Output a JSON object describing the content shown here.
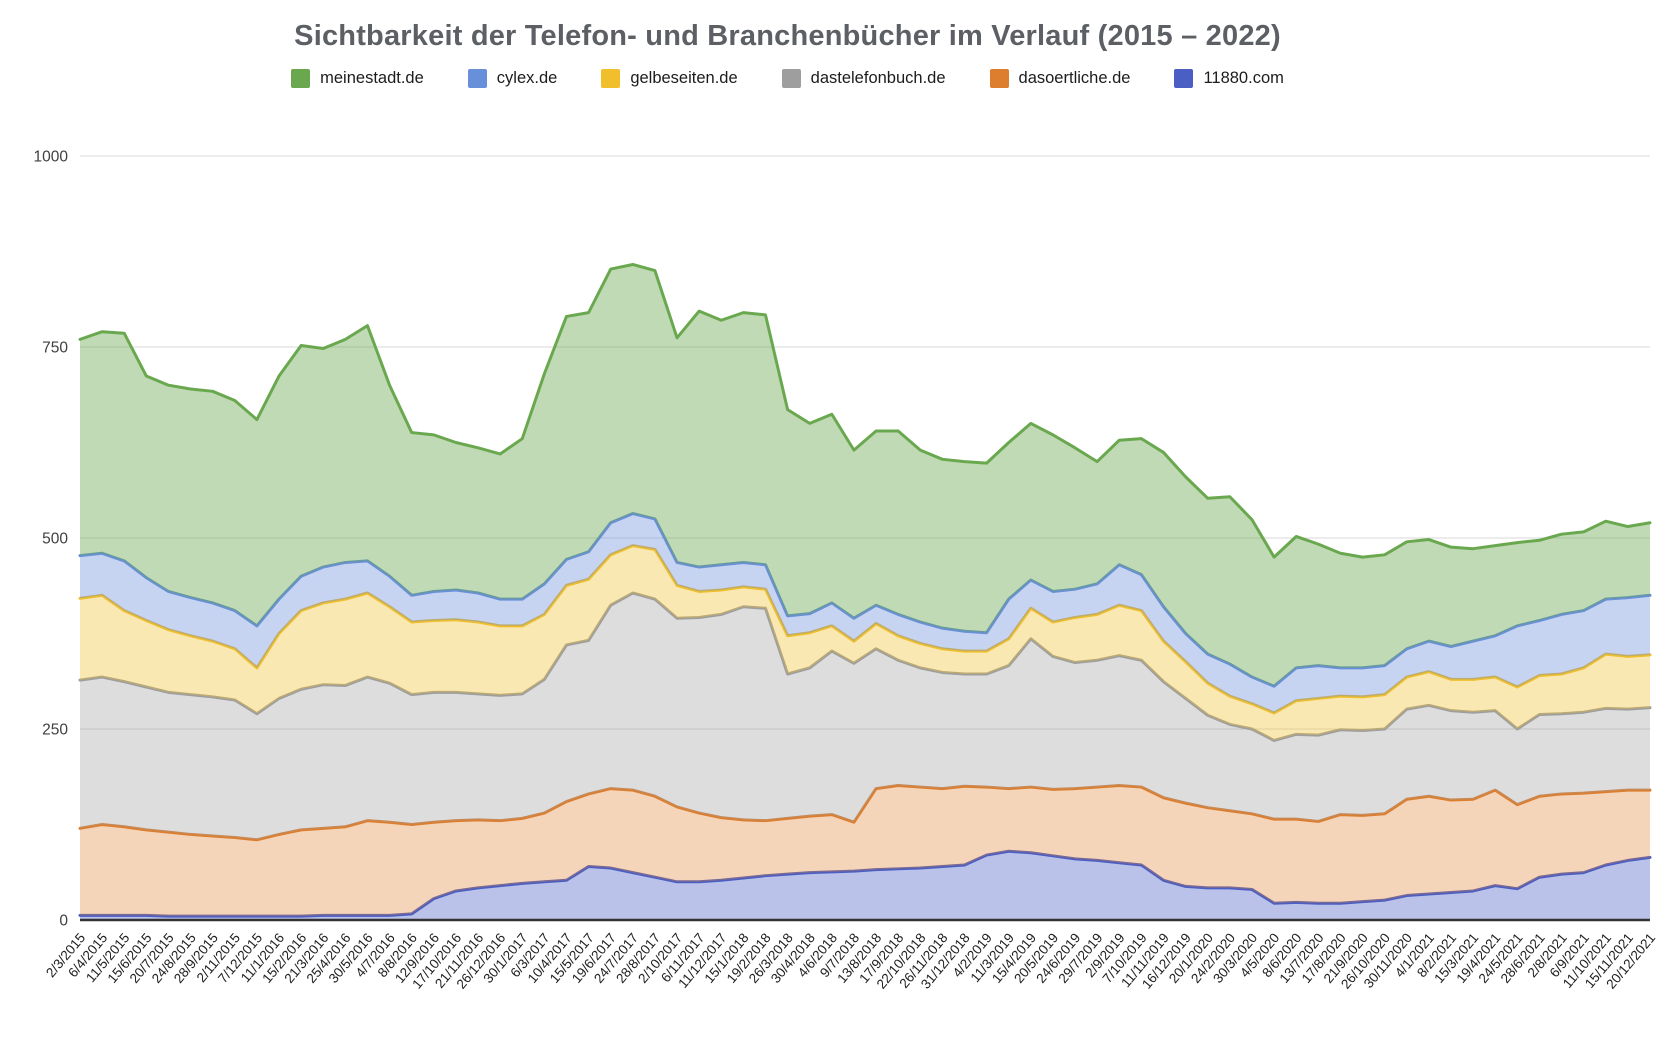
{
  "page": {
    "background": "#ffffff"
  },
  "chart_data": {
    "type": "area",
    "stacked": true,
    "title": "Sichtbarkeit der Telefon- und Branchenbücher im Verlauf (2015 – 2022)",
    "legend_position": "top",
    "grid": true,
    "ylim": [
      0,
      1000
    ],
    "y_ticks": [
      0,
      250,
      500,
      750,
      1000
    ],
    "categories": [
      "2/3/2015",
      "6/4/2015",
      "11/5/2015",
      "15/6/2015",
      "20/7/2015",
      "24/8/2015",
      "28/9/2015",
      "2/11/2015",
      "7/12/2015",
      "11/1/2016",
      "15/2/2016",
      "21/3/2016",
      "25/4/2016",
      "30/5/2016",
      "4/7/2016",
      "8/8/2016",
      "12/9/2016",
      "17/10/2016",
      "21/11/2016",
      "26/12/2016",
      "30/1/2017",
      "6/3/2017",
      "10/4/2017",
      "15/5/2017",
      "19/6/2017",
      "24/7/2017",
      "28/8/2017",
      "2/10/2017",
      "6/11/2017",
      "11/12/2017",
      "15/1/2018",
      "19/2/2018",
      "26/3/2018",
      "30/4/2018",
      "4/6/2018",
      "9/7/2018",
      "13/8/2018",
      "17/9/2018",
      "22/10/2018",
      "26/11/2018",
      "31/12/2018",
      "4/2/2019",
      "11/3/2019",
      "15/4/2019",
      "20/5/2019",
      "24/6/2019",
      "29/7/2019",
      "2/9/2019",
      "7/10/2019",
      "11/11/2019",
      "16/12/2019",
      "20/1/2020",
      "24/2/2020",
      "30/3/2020",
      "4/5/2020",
      "8/6/2020",
      "13/7/2020",
      "17/8/2020",
      "21/9/2020",
      "26/10/2020",
      "30/11/2020",
      "4/1/2021",
      "8/2/2021",
      "15/3/2021",
      "19/4/2021",
      "24/5/2021",
      "28/6/2021",
      "2/8/2021",
      "6/9/2021",
      "11/10/2021",
      "15/11/2021",
      "20/12/2021"
    ],
    "series": [
      {
        "name": "meinestadt.de",
        "color": "#6aa84f",
        "fill_opacity": 0.42,
        "values": [
          283,
          290,
          298,
          264,
          270,
          273,
          277,
          275,
          270,
          292,
          302,
          286,
          292,
          308,
          250,
          213,
          205,
          193,
          190,
          190,
          210,
          275,
          318,
          313,
          332,
          326,
          325,
          294,
          335,
          320,
          327,
          327,
          270,
          249,
          247,
          220,
          228,
          240,
          225,
          221,
          222,
          222,
          205,
          205,
          205,
          185,
          160,
          163,
          178,
          202,
          205,
          204,
          219,
          206,
          169,
          172,
          159,
          150,
          145,
          145,
          140,
          133,
          130,
          121,
          118,
          109,
          105,
          105,
          103,
          102,
          93,
          95
        ]
      },
      {
        "name": "cylex.de",
        "color": "#688fd9",
        "fill_opacity": 0.38,
        "values": [
          56,
          55,
          65,
          56,
          50,
          50,
          50,
          50,
          55,
          45,
          45,
          47,
          48,
          42,
          40,
          35,
          38,
          39,
          38,
          35,
          35,
          40,
          34,
          36,
          42,
          42,
          40,
          30,
          32,
          33,
          32,
          32,
          26,
          25,
          30,
          30,
          24,
          28,
          28,
          27,
          26,
          24,
          52,
          37,
          40,
          37,
          40,
          53,
          47,
          45,
          37,
          38,
          42,
          35,
          35,
          43,
          43,
          37,
          38,
          38,
          37,
          40,
          43,
          50,
          54,
          80,
          72,
          78,
          75,
          72,
          77,
          78
        ]
      },
      {
        "name": "gelbeseiten.de",
        "color": "#f0bf2b",
        "fill_opacity": 0.36,
        "values": [
          107,
          107,
          93,
          87,
          82,
          77,
          73,
          67,
          60,
          85,
          103,
          107,
          113,
          110,
          100,
          95,
          94,
          95,
          94,
          91,
          89,
          85,
          78,
          80,
          66,
          62,
          65,
          43,
          34,
          32,
          26,
          25,
          50,
          46,
          33,
          29,
          33,
          32,
          32,
          31,
          30,
          30,
          35,
          40,
          45,
          59,
          60,
          66,
          65,
          53,
          48,
          42,
          37,
          33,
          36,
          44,
          48,
          44,
          44,
          45,
          42,
          44,
          41,
          43,
          44,
          55,
          51,
          52,
          58,
          71,
          69,
          69
        ]
      },
      {
        "name": "dastelefonbuch.de",
        "color": "#9e9e9e",
        "fill_opacity": 0.35,
        "values": [
          194,
          193,
          190,
          187,
          183,
          183,
          182,
          180,
          165,
          178,
          184,
          188,
          185,
          188,
          182,
          170,
          170,
          168,
          165,
          164,
          163,
          175,
          205,
          201,
          240,
          258,
          258,
          247,
          256,
          266,
          279,
          278,
          189,
          194,
          214,
          208,
          183,
          164,
          156,
          152,
          147,
          148,
          161,
          194,
          174,
          165,
          166,
          170,
          166,
          152,
          137,
          121,
          113,
          111,
          103,
          111,
          113,
          111,
          111,
          111,
          118,
          119,
          117,
          114,
          104,
          99,
          107,
          105,
          106,
          109,
          106,
          108
        ]
      },
      {
        "name": "dasoertliche.de",
        "color": "#dd7e2e",
        "fill_opacity": 0.33,
        "values": [
          114,
          119,
          116,
          112,
          110,
          107,
          105,
          103,
          100,
          107,
          113,
          114,
          116,
          124,
          122,
          117,
          100,
          92,
          89,
          85,
          85,
          90,
          103,
          95,
          104,
          108,
          106,
          98,
          90,
          82,
          76,
          72,
          73,
          74,
          75,
          64,
          106,
          109,
          106,
          102,
          103,
          89,
          82,
          86,
          87,
          92,
          96,
          101,
          102,
          108,
          109,
          105,
          101,
          99,
          110,
          109,
          107,
          116,
          113,
          113,
          126,
          128,
          121,
          120,
          125,
          110,
          106,
          105,
          104,
          96,
          92,
          88
        ]
      },
      {
        "name": "11880.com",
        "color": "#4a5ec4",
        "fill_opacity": 0.38,
        "values": [
          6,
          6,
          6,
          6,
          5,
          5,
          5,
          5,
          5,
          5,
          5,
          6,
          6,
          6,
          6,
          8,
          28,
          38,
          42,
          45,
          48,
          50,
          52,
          70,
          68,
          62,
          56,
          50,
          50,
          52,
          55,
          58,
          60,
          62,
          63,
          64,
          66,
          67,
          68,
          70,
          72,
          85,
          90,
          88,
          84,
          80,
          78,
          75,
          72,
          52,
          44,
          42,
          42,
          40,
          22,
          23,
          22,
          22,
          24,
          26,
          32,
          34,
          36,
          38,
          45,
          41,
          56,
          60,
          62,
          72,
          78,
          82
        ]
      }
    ],
    "stack_order_bottom_to_top": [
      "11880.com",
      "dasoertliche.de",
      "dastelefonbuch.de",
      "gelbeseiten.de",
      "cylex.de",
      "meinestadt.de"
    ],
    "axis_colors": {
      "gridline": "#d9d9d9",
      "baseline": "#333333",
      "y_label": "#3f3f3f",
      "x_label": "#202020",
      "title": "#5c5f63"
    }
  }
}
